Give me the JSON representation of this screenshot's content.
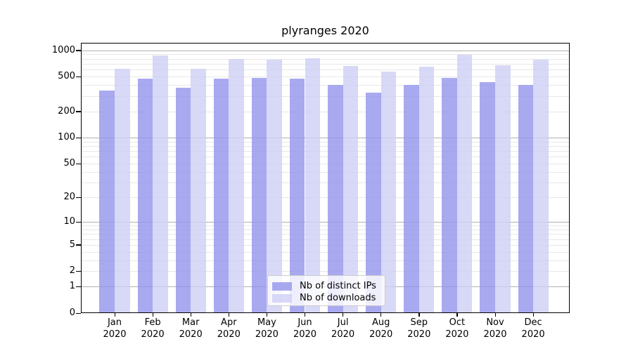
{
  "title": "plyranges 2020",
  "chart_data": {
    "type": "bar",
    "title": "plyranges 2020",
    "scale": "log1p",
    "grid": true,
    "legend_position": "lower center",
    "categories": [
      "Jan",
      "Feb",
      "Mar",
      "Apr",
      "May",
      "Jun",
      "Jul",
      "Aug",
      "Sep",
      "Oct",
      "Nov",
      "Dec"
    ],
    "year_label": "2020",
    "series": [
      {
        "name": "Nb of distinct IPs",
        "color": "#9393ec",
        "alpha": 0.8,
        "values": [
          344,
          477,
          373,
          477,
          486,
          472,
          404,
          331,
          402,
          486,
          435,
          404
        ]
      },
      {
        "name": "Nb of downloads",
        "color": "#cecef5",
        "alpha": 0.8,
        "values": [
          611,
          878,
          614,
          800,
          782,
          816,
          657,
          568,
          649,
          892,
          678,
          777
        ]
      }
    ],
    "y_ticks": [
      0,
      1,
      2,
      5,
      10,
      20,
      50,
      100,
      200,
      500,
      1000
    ],
    "y_major_ticks": [
      1,
      10,
      100,
      1000
    ],
    "ylim": [
      0,
      1220
    ],
    "xlabel": "",
    "ylabel": ""
  },
  "colors": {
    "background": "#ffffff",
    "bar_dark": "#a9a9f0",
    "bar_light": "#d8d8f7",
    "grid_major": "#b0b0b0",
    "grid_minor": "#e7e7e7",
    "spine": "#000000",
    "legend_border": "#cccccc"
  }
}
